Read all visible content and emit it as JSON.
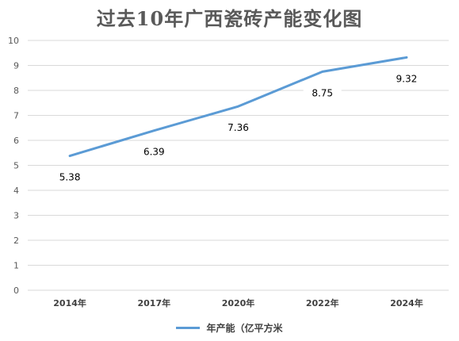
{
  "chart_data": {
    "type": "line",
    "title": "过去10年广西瓷砖产能变化图",
    "categories": [
      "2014年",
      "2017年",
      "2020年",
      "2022年",
      "2024年"
    ],
    "series": [
      {
        "name": "年产能（亿平方米",
        "values": [
          5.38,
          6.39,
          7.36,
          8.75,
          9.32
        ]
      }
    ],
    "ylim": [
      0,
      10
    ],
    "yticks": [
      0,
      1,
      2,
      3,
      4,
      5,
      6,
      7,
      8,
      9,
      10
    ],
    "grid": true,
    "legend": "bottom",
    "line_color": "#5B9BD5"
  }
}
